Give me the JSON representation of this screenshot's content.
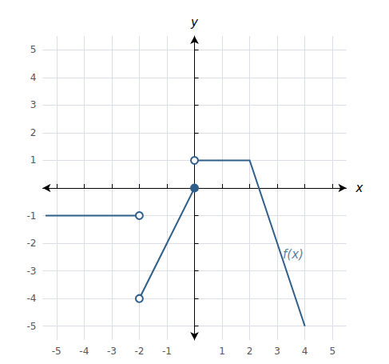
{
  "chart_data": {
    "type": "line",
    "xlabel": "x",
    "ylabel": "y",
    "xlim": [
      -5.5,
      5.5
    ],
    "ylim": [
      -5.5,
      5.5
    ],
    "xticks": [
      -5,
      -4,
      -3,
      -2,
      -1,
      1,
      2,
      3,
      4,
      5
    ],
    "yticks": [
      -5,
      -4,
      -3,
      -2,
      -1,
      1,
      2,
      3,
      4,
      5
    ],
    "grid": true,
    "color": "#2E5F8A",
    "series": [
      {
        "type": "line",
        "marker": "arrow",
        "x": [
          -2.0,
          -5.4
        ],
        "values": [
          -1,
          -1
        ]
      },
      {
        "type": "line",
        "x": [
          -2,
          0
        ],
        "values": [
          -4,
          0
        ]
      },
      {
        "type": "line",
        "marker": "arrow",
        "x": [
          0,
          2,
          4.0
        ],
        "values": [
          1,
          1,
          -5.0
        ]
      },
      {
        "type": "scatter",
        "marker": "open_circle",
        "x": [
          -2,
          -2,
          0
        ],
        "values": [
          -1,
          -4,
          1
        ]
      },
      {
        "type": "scatter",
        "marker": "circle",
        "x": [
          0
        ],
        "values": [
          0
        ]
      }
    ],
    "annotations": [
      {
        "text": "f(x)",
        "x": 3.2,
        "y": -2.4
      }
    ]
  }
}
